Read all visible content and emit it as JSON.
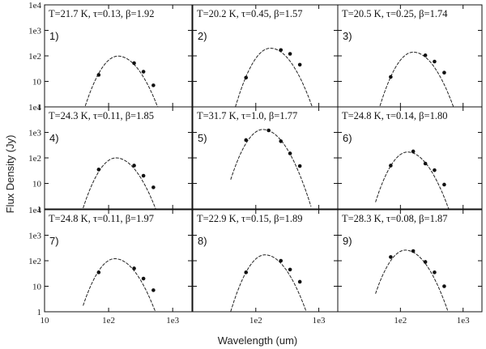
{
  "figure": {
    "ylabel": "Flux Density (Jy)",
    "xlabel": "Wavelength (um)",
    "y_ticks": [
      "1e4",
      "1e3",
      "1e2",
      "10",
      "1"
    ],
    "x_ticks": {
      "col1": [
        "10",
        "1e2",
        "1e3"
      ],
      "col2": [
        "1e2",
        "1e3"
      ],
      "col3": [
        "1e2",
        "1e3"
      ]
    }
  },
  "chart_data": {
    "type": "scatter",
    "xscale": "log",
    "yscale": "log",
    "xlim": [
      10,
      2000
    ],
    "ylim": [
      1,
      10000
    ],
    "grid": false,
    "panels": [
      {
        "id": "1)",
        "title": "T=21.7 K, τ=0.13, β=1.92",
        "points": [
          [
            70,
            18
          ],
          [
            250,
            52
          ],
          [
            350,
            24
          ],
          [
            500,
            7
          ]
        ],
        "peak": [
          140,
          98
        ],
        "curve_range": [
          40,
          900
        ]
      },
      {
        "id": "2)",
        "title": "T=20.2 K, τ=0.45, β=1.57",
        "points": [
          [
            70,
            14
          ],
          [
            250,
            170
          ],
          [
            350,
            120
          ],
          [
            500,
            45
          ]
        ],
        "peak": [
          170,
          200
        ],
        "curve_range": [
          40,
          1200
        ]
      },
      {
        "id": "3)",
        "title": "T=20.5 K, τ=0.25, β=1.74",
        "points": [
          [
            70,
            15
          ],
          [
            250,
            105
          ],
          [
            350,
            60
          ],
          [
            500,
            22
          ]
        ],
        "peak": [
          160,
          140
        ],
        "curve_range": [
          40,
          1100
        ]
      },
      {
        "id": "4)",
        "title": "T=24.3 K, τ=0.11, β=1.85",
        "points": [
          [
            70,
            35
          ],
          [
            250,
            50
          ],
          [
            350,
            20
          ],
          [
            500,
            7
          ]
        ],
        "peak": [
          130,
          100
        ],
        "curve_range": [
          40,
          900
        ]
      },
      {
        "id": "5)",
        "title": "T=31.7 K, τ=1.0, β=1.77",
        "points": [
          [
            70,
            500
          ],
          [
            160,
            1200
          ],
          [
            250,
            450
          ],
          [
            350,
            150
          ],
          [
            500,
            48
          ]
        ],
        "peak": [
          130,
          1300
        ],
        "curve_range": [
          40,
          2000
        ]
      },
      {
        "id": "6)",
        "title": "T=24.8 K, τ=0.14, β=1.80",
        "points": [
          [
            70,
            50
          ],
          [
            160,
            180
          ],
          [
            250,
            60
          ],
          [
            350,
            33
          ],
          [
            500,
            9
          ]
        ],
        "peak": [
          130,
          170
        ],
        "curve_range": [
          40,
          1100
        ]
      },
      {
        "id": "7)",
        "title": "T=24.8 K, τ=0.11, β=1.97",
        "points": [
          [
            70,
            35
          ],
          [
            250,
            50
          ],
          [
            350,
            20
          ],
          [
            500,
            7
          ]
        ],
        "peak": [
          125,
          120
        ],
        "curve_range": [
          40,
          900
        ]
      },
      {
        "id": "8)",
        "title": "T=22.9 K, τ=0.15, β=1.89",
        "points": [
          [
            70,
            35
          ],
          [
            250,
            100
          ],
          [
            350,
            45
          ],
          [
            500,
            15
          ]
        ],
        "peak": [
          140,
          170
        ],
        "curve_range": [
          40,
          1000
        ]
      },
      {
        "id": "9)",
        "title": "T=28.3 K, τ=0.08, β=1.87",
        "points": [
          [
            70,
            140
          ],
          [
            160,
            240
          ],
          [
            250,
            90
          ],
          [
            350,
            35
          ],
          [
            500,
            10
          ]
        ],
        "peak": [
          120,
          260
        ],
        "curve_range": [
          40,
          1100
        ]
      }
    ]
  }
}
